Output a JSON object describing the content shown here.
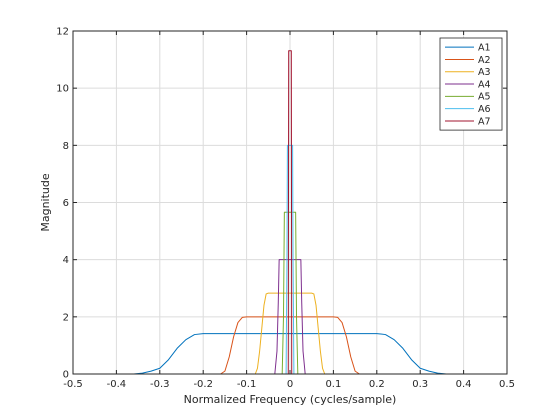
{
  "chart_data": {
    "type": "line",
    "title": "",
    "xlabel": "Normalized Frequency (cycles/sample)",
    "ylabel": "Magnitude",
    "xlim": [
      -0.5,
      0.5
    ],
    "ylim": [
      0,
      12
    ],
    "xticks": [
      "-0.5",
      "-0.4",
      "-0.3",
      "-0.2",
      "-0.1",
      "0",
      "0.1",
      "0.2",
      "0.3",
      "0.4",
      "0.5"
    ],
    "yticks": [
      "0",
      "2",
      "4",
      "6",
      "8",
      "10",
      "12"
    ],
    "grid": true,
    "legend_position": "top-right",
    "series": [
      {
        "name": "A1",
        "color": "#0072BD",
        "points": [
          [
            -0.5,
            0
          ],
          [
            -0.36,
            0
          ],
          [
            -0.34,
            0.03
          ],
          [
            -0.32,
            0.1
          ],
          [
            -0.3,
            0.2
          ],
          [
            -0.28,
            0.5
          ],
          [
            -0.26,
            0.9
          ],
          [
            -0.24,
            1.2
          ],
          [
            -0.22,
            1.38
          ],
          [
            -0.2,
            1.414
          ],
          [
            0.2,
            1.414
          ],
          [
            0.22,
            1.38
          ],
          [
            0.24,
            1.2
          ],
          [
            0.26,
            0.9
          ],
          [
            0.28,
            0.5
          ],
          [
            0.3,
            0.2
          ],
          [
            0.32,
            0.1
          ],
          [
            0.34,
            0.03
          ],
          [
            0.36,
            0
          ],
          [
            0.5,
            0
          ]
        ]
      },
      {
        "name": "A2",
        "color": "#D95319",
        "points": [
          [
            -0.5,
            0
          ],
          [
            -0.16,
            0
          ],
          [
            -0.15,
            0.1
          ],
          [
            -0.14,
            0.6
          ],
          [
            -0.13,
            1.3
          ],
          [
            -0.12,
            1.8
          ],
          [
            -0.11,
            1.98
          ],
          [
            -0.1,
            2.0
          ],
          [
            0.1,
            2.0
          ],
          [
            0.11,
            1.98
          ],
          [
            0.12,
            1.8
          ],
          [
            0.13,
            1.3
          ],
          [
            0.14,
            0.6
          ],
          [
            0.15,
            0.1
          ],
          [
            0.16,
            0
          ],
          [
            0.5,
            0
          ]
        ]
      },
      {
        "name": "A3",
        "color": "#EDB120",
        "points": [
          [
            -0.5,
            0
          ],
          [
            -0.08,
            0
          ],
          [
            -0.075,
            0.2
          ],
          [
            -0.07,
            0.8
          ],
          [
            -0.065,
            1.6
          ],
          [
            -0.06,
            2.4
          ],
          [
            -0.055,
            2.8
          ],
          [
            -0.05,
            2.83
          ],
          [
            0.05,
            2.83
          ],
          [
            0.055,
            2.8
          ],
          [
            0.06,
            2.4
          ],
          [
            0.065,
            1.6
          ],
          [
            0.07,
            0.8
          ],
          [
            0.075,
            0.2
          ],
          [
            0.08,
            0
          ],
          [
            0.5,
            0
          ]
        ]
      },
      {
        "name": "A4",
        "color": "#7E2F8E",
        "points": [
          [
            -0.5,
            0
          ],
          [
            -0.035,
            0
          ],
          [
            -0.03,
            0.8
          ],
          [
            -0.027,
            2.5
          ],
          [
            -0.025,
            4.0
          ],
          [
            0.025,
            4.0
          ],
          [
            0.027,
            2.5
          ],
          [
            0.03,
            0.8
          ],
          [
            0.035,
            0
          ],
          [
            0.5,
            0
          ]
        ]
      },
      {
        "name": "A5",
        "color": "#77AC30",
        "points": [
          [
            -0.5,
            0
          ],
          [
            -0.018,
            0
          ],
          [
            -0.015,
            2.0
          ],
          [
            -0.013,
            5.66
          ],
          [
            0.013,
            5.66
          ],
          [
            0.015,
            2.0
          ],
          [
            0.018,
            0
          ],
          [
            0.5,
            0
          ]
        ]
      },
      {
        "name": "A6",
        "color": "#4DBEEE",
        "points": [
          [
            -0.5,
            0
          ],
          [
            -0.009,
            0
          ],
          [
            -0.007,
            4.0
          ],
          [
            -0.006,
            8.0
          ],
          [
            0.006,
            8.0
          ],
          [
            0.007,
            4.0
          ],
          [
            0.009,
            0
          ],
          [
            0.5,
            0
          ]
        ]
      },
      {
        "name": "A7",
        "color": "#A2142F",
        "points": [
          [
            -0.5,
            0
          ],
          [
            -0.004,
            0
          ],
          [
            -0.003,
            11.31
          ],
          [
            0.003,
            11.31
          ],
          [
            0.004,
            0
          ],
          [
            0.5,
            0
          ]
        ]
      }
    ]
  }
}
